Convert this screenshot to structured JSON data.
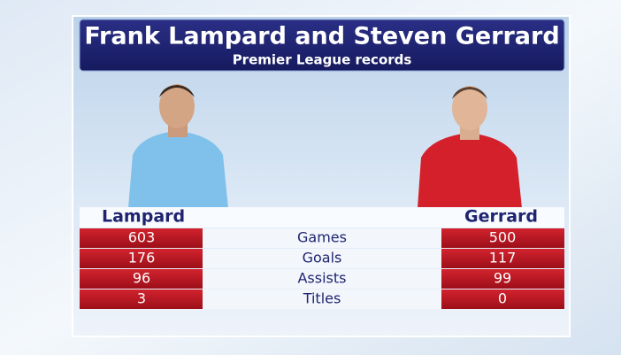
{
  "header": {
    "title": "Frank Lampard and Steven Gerrard",
    "subtitle": "Premier League records"
  },
  "players": {
    "left": "Lampard",
    "right": "Gerrard"
  },
  "table": {
    "rows": [
      {
        "label": "Games",
        "left": 603,
        "right": 500
      },
      {
        "label": "Goals",
        "left": 176,
        "right": 117
      },
      {
        "label": "Assists",
        "left": 96,
        "right": 99
      },
      {
        "label": "Titles",
        "left": 3,
        "right": 0
      }
    ]
  }
}
